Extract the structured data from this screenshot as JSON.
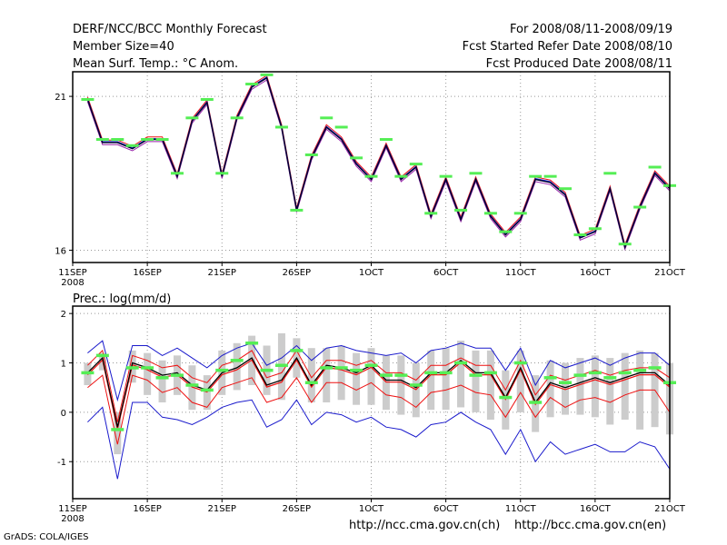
{
  "header": {
    "left": [
      "DERF/NCC/BCC Monthly Forecast",
      "Member Size=40",
      "Mean Surf. Temp.: °C Anom."
    ],
    "right": [
      "For 2008/08/11-2008/09/19",
      "Fcst Started Refer Date 2008/08/10",
      "Fcst Produced Date 2008/08/11"
    ]
  },
  "footer": {
    "url_ch": "http://ncc.cma.gov.cn(ch)",
    "url_en": "http://bcc.cma.gov.cn(en)",
    "credit": "GrADS: COLA/IGES"
  },
  "colors": {
    "green": "#55ee55",
    "grey": "#cccccc",
    "red": "#ee1111",
    "blue": "#1a1acc",
    "dark": "#000033"
  },
  "chart_data": [
    {
      "type": "line",
      "title": "Mean Surf. Temp.: °C Anom.",
      "x_ticks": [
        "11SEP",
        "16SEP",
        "21SEP",
        "26SEP",
        "1OCT",
        "6OCT",
        "11OCT",
        "16OCT",
        "21OCT"
      ],
      "x_tick_days": [
        0,
        5,
        10,
        15,
        20,
        25,
        30,
        35,
        40
      ],
      "x_sublabel": "2008",
      "xlim": [
        0,
        40
      ],
      "ylim": [
        15.6,
        21.8
      ],
      "y_ticks": [
        16,
        21
      ],
      "grid": true,
      "series": [
        {
          "name": "ensemble mean",
          "values": [
            20.9,
            19.5,
            19.5,
            19.3,
            19.6,
            19.6,
            18.4,
            20.2,
            20.8,
            18.4,
            20.3,
            21.3,
            21.6,
            20.0,
            17.3,
            19.0,
            20.0,
            19.6,
            18.8,
            18.3,
            19.4,
            18.3,
            18.7,
            17.1,
            18.3,
            17.0,
            18.3,
            17.1,
            16.5,
            17.0,
            18.3,
            18.2,
            17.8,
            16.4,
            16.6,
            18.0,
            16.1,
            17.4,
            18.5,
            18.0
          ]
        },
        {
          "name": "marker",
          "values": [
            20.9,
            19.6,
            19.6,
            19.4,
            19.6,
            19.6,
            18.5,
            20.3,
            20.9,
            18.5,
            20.3,
            21.4,
            21.7,
            20.0,
            17.3,
            19.1,
            20.3,
            20.0,
            19.0,
            18.4,
            19.6,
            18.4,
            18.8,
            17.2,
            18.4,
            17.3,
            18.5,
            17.2,
            16.6,
            17.2,
            18.4,
            18.4,
            18.0,
            16.5,
            16.7,
            18.5,
            16.2,
            17.4,
            18.7,
            18.1
          ]
        }
      ]
    },
    {
      "type": "line",
      "title": "Prec.: log(mm/d)",
      "x_ticks": [
        "11SEP",
        "16SEP",
        "21SEP",
        "26SEP",
        "1OCT",
        "6OCT",
        "11OCT",
        "16OCT",
        "21OCT"
      ],
      "x_tick_days": [
        0,
        5,
        10,
        15,
        20,
        25,
        30,
        35,
        40
      ],
      "x_sublabel": "2008",
      "xlim": [
        0,
        40
      ],
      "ylim": [
        -1.75,
        2.15
      ],
      "y_ticks": [
        -1,
        0,
        1,
        2
      ],
      "grid": true,
      "series": [
        {
          "name": "mean",
          "values": [
            0.8,
            1.1,
            -0.3,
            1.0,
            0.9,
            0.75,
            0.8,
            0.55,
            0.45,
            0.8,
            0.9,
            1.1,
            0.55,
            0.65,
            1.1,
            0.55,
            0.95,
            0.9,
            0.8,
            0.95,
            0.65,
            0.65,
            0.5,
            0.8,
            0.8,
            1.05,
            0.8,
            0.8,
            0.3,
            0.9,
            0.2,
            0.6,
            0.5,
            0.6,
            0.7,
            0.6,
            0.7,
            0.8,
            0.8,
            0.55
          ]
        },
        {
          "name": "marker",
          "values": [
            0.8,
            1.15,
            -0.35,
            0.9,
            0.9,
            0.7,
            0.75,
            0.55,
            0.45,
            0.85,
            1.05,
            1.4,
            0.85,
            0.95,
            1.25,
            0.6,
            0.9,
            0.9,
            0.85,
            0.95,
            0.75,
            0.75,
            0.55,
            0.8,
            0.8,
            1.0,
            0.75,
            0.8,
            0.3,
            1.0,
            0.2,
            0.7,
            0.6,
            0.75,
            0.8,
            0.7,
            0.8,
            0.85,
            0.9,
            0.6
          ]
        },
        {
          "name": "upper quantile",
          "values": [
            0.95,
            1.25,
            -0.2,
            1.15,
            1.05,
            0.9,
            0.95,
            0.7,
            0.6,
            0.95,
            1.05,
            1.25,
            0.7,
            0.8,
            1.25,
            0.7,
            1.05,
            1.05,
            0.95,
            1.05,
            0.8,
            0.8,
            0.65,
            0.95,
            0.95,
            1.1,
            0.95,
            0.95,
            0.45,
            1.05,
            0.35,
            0.75,
            0.65,
            0.75,
            0.85,
            0.75,
            0.85,
            0.9,
            0.9,
            0.7
          ]
        },
        {
          "name": "lower quantile",
          "values": [
            0.5,
            0.75,
            -0.65,
            0.75,
            0.65,
            0.4,
            0.5,
            0.2,
            0.1,
            0.5,
            0.6,
            0.7,
            0.2,
            0.3,
            0.7,
            0.2,
            0.6,
            0.6,
            0.45,
            0.6,
            0.35,
            0.3,
            0.1,
            0.4,
            0.45,
            0.55,
            0.4,
            0.35,
            -0.1,
            0.4,
            -0.1,
            0.3,
            0.1,
            0.25,
            0.3,
            0.2,
            0.35,
            0.45,
            0.45,
            0.0
          ]
        },
        {
          "name": "max",
          "values": [
            1.2,
            1.45,
            0.25,
            1.35,
            1.35,
            1.15,
            1.3,
            1.1,
            0.9,
            1.15,
            1.3,
            1.4,
            0.95,
            1.1,
            1.35,
            1.05,
            1.3,
            1.35,
            1.25,
            1.2,
            1.15,
            1.2,
            1.0,
            1.25,
            1.3,
            1.4,
            1.3,
            1.3,
            0.85,
            1.3,
            0.55,
            1.05,
            0.9,
            1.0,
            1.1,
            0.95,
            1.1,
            1.2,
            1.2,
            0.95
          ]
        },
        {
          "name": "min",
          "values": [
            -0.2,
            0.1,
            -1.35,
            0.2,
            0.2,
            -0.1,
            -0.15,
            -0.25,
            -0.1,
            0.1,
            0.2,
            0.25,
            -0.3,
            -0.15,
            0.25,
            -0.25,
            0.0,
            -0.05,
            -0.2,
            -0.1,
            -0.3,
            -0.35,
            -0.5,
            -0.25,
            -0.2,
            0.0,
            -0.2,
            -0.35,
            -0.85,
            -0.35,
            -1.0,
            -0.6,
            -0.85,
            -0.75,
            -0.65,
            -0.8,
            -0.8,
            -0.6,
            -0.7,
            -1.15
          ]
        },
        {
          "name": "spread top",
          "values": [
            1.0,
            1.2,
            0.0,
            1.25,
            1.2,
            1.05,
            1.15,
            0.95,
            0.75,
            1.25,
            1.4,
            1.55,
            1.35,
            1.6,
            1.5,
            1.3,
            1.3,
            1.35,
            1.2,
            1.3,
            1.15,
            1.15,
            1.0,
            1.25,
            1.3,
            1.45,
            1.25,
            1.25,
            0.85,
            1.25,
            0.75,
            1.05,
            1.0,
            1.1,
            1.15,
            1.1,
            1.2,
            1.25,
            1.2,
            1.0
          ]
        },
        {
          "name": "spread bottom",
          "values": [
            0.55,
            0.85,
            -0.85,
            0.6,
            0.35,
            0.2,
            0.35,
            0.05,
            0.05,
            0.35,
            0.45,
            0.55,
            0.35,
            0.25,
            0.7,
            0.2,
            0.2,
            0.25,
            0.15,
            0.15,
            0.05,
            -0.05,
            -0.1,
            0.05,
            0.05,
            0.1,
            0.0,
            -0.15,
            -0.35,
            0.0,
            -0.4,
            -0.1,
            -0.05,
            -0.05,
            -0.1,
            -0.25,
            -0.15,
            -0.35,
            -0.3,
            -0.45
          ]
        }
      ]
    }
  ]
}
